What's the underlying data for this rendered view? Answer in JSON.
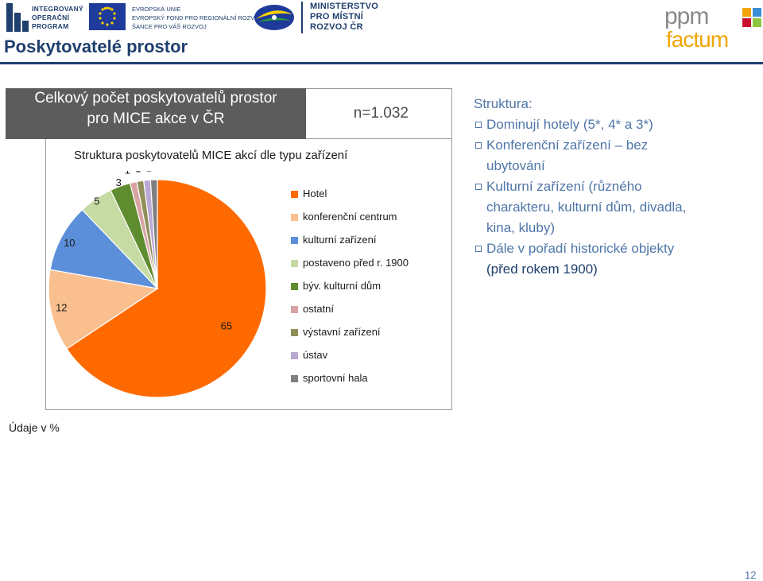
{
  "header": {
    "iop_logo_text": [
      "INTEGROVANÝ",
      "OPERAČNÍ",
      "PROGRAM"
    ],
    "eu_text": [
      "EVROPSKÁ UNIE",
      "EVROPSKÝ FOND PRO REGIONÁLNÍ ROZVOJ",
      "ŠANCE PRO VÁŠ ROZVOJ"
    ],
    "ministry_text": [
      "MINISTERSTVO",
      "PRO MÍSTNÍ",
      "ROZVOJ ČR"
    ],
    "ppm_logo": {
      "top": "ppm",
      "bottom": "factum",
      "colors": [
        "#f0a500",
        "#3a8fd6",
        "#c8102e",
        "#8cc63f"
      ]
    }
  },
  "page_title": "Poskytovatelé prostor",
  "summary_box": {
    "line1": "Celkový počet poskytovatelů prostor",
    "line2": "pro MICE akce v ČR",
    "n_label": "n=1.032"
  },
  "chart_data": {
    "type": "pie",
    "title": "Struktura poskytovatelů MICE akcí dle typu zařízení",
    "categories": [
      "Hotel",
      "konferenční centrum",
      "kulturní zařízení",
      "postaveno před r. 1900",
      "býv. kulturní dům",
      "ostatní",
      "výstavní zařízení",
      "ústav",
      "sportovní hala"
    ],
    "values": [
      65,
      12,
      10,
      5,
      3,
      1,
      1,
      1,
      1
    ],
    "colors": [
      "#ff6a00",
      "#f9bf8f",
      "#5b8fd9",
      "#c6dba4",
      "#5e8c2f",
      "#d9a3a3",
      "#8f8f59",
      "#b9a9d4",
      "#7f7f7f"
    ],
    "unit": "%",
    "legend_position": "right"
  },
  "right_panel": {
    "heading": "Struktura:",
    "bullets": [
      [
        "Dominují hotely (5*, 4* a 3*)"
      ],
      [
        "Konferenční zařízení – bez",
        "ubytování"
      ],
      [
        "Kulturní zařízení (různého",
        "charakteru, kulturní dům, divadla,",
        "kina, kluby)"
      ],
      [
        "Dále v pořadí historické objekty"
      ]
    ],
    "sub_note": "(před rokem 1900)"
  },
  "footnote": "Údaje v %",
  "page_number": "12"
}
